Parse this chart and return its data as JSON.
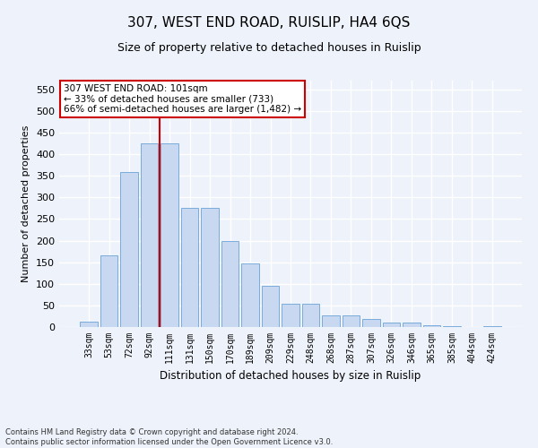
{
  "title": "307, WEST END ROAD, RUISLIP, HA4 6QS",
  "subtitle": "Size of property relative to detached houses in Ruislip",
  "xlabel": "Distribution of detached houses by size in Ruislip",
  "ylabel": "Number of detached properties",
  "categories": [
    "33sqm",
    "53sqm",
    "72sqm",
    "92sqm",
    "111sqm",
    "131sqm",
    "150sqm",
    "170sqm",
    "189sqm",
    "209sqm",
    "229sqm",
    "248sqm",
    "268sqm",
    "287sqm",
    "307sqm",
    "326sqm",
    "346sqm",
    "365sqm",
    "385sqm",
    "404sqm",
    "424sqm"
  ],
  "values": [
    13,
    165,
    358,
    425,
    425,
    275,
    275,
    200,
    148,
    96,
    53,
    53,
    27,
    27,
    18,
    10,
    10,
    5,
    3,
    1,
    2
  ],
  "bar_color": "#c8d8f0",
  "bar_edge_color": "#7aacda",
  "vline_x": 3.5,
  "vline_color": "#cc0000",
  "annotation_text": "307 WEST END ROAD: 101sqm\n← 33% of detached houses are smaller (733)\n66% of semi-detached houses are larger (1,482) →",
  "annotation_box_color": "#ffffff",
  "annotation_box_edge_color": "#cc0000",
  "ylim": [
    0,
    570
  ],
  "yticks": [
    0,
    50,
    100,
    150,
    200,
    250,
    300,
    350,
    400,
    450,
    500,
    550
  ],
  "footer": "Contains HM Land Registry data © Crown copyright and database right 2024.\nContains public sector information licensed under the Open Government Licence v3.0.",
  "bg_color": "#eef2fa",
  "plot_bg_color": "#eef2fa",
  "grid_color": "#ffffff",
  "title_fontsize": 11,
  "subtitle_fontsize": 9,
  "xlabel_fontsize": 8.5,
  "ylabel_fontsize": 8,
  "tick_fontsize": 7,
  "footer_fontsize": 6,
  "annotation_fontsize": 7.5
}
